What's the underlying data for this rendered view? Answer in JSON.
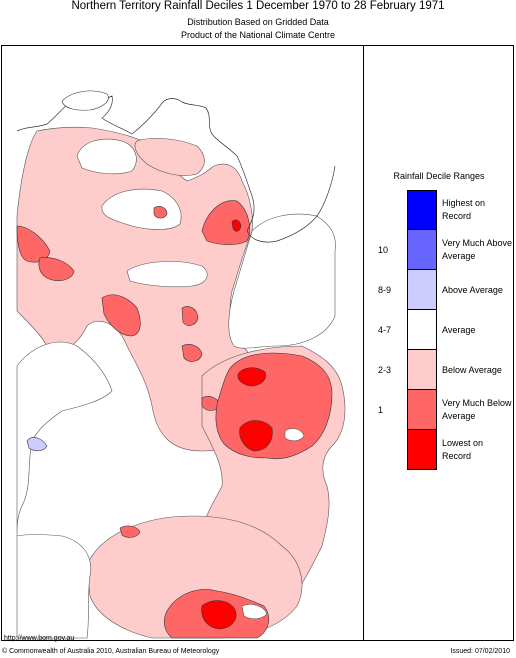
{
  "header": {
    "title": "Northern Territory Rainfall Deciles     1 December 1970 to 28 February 1971",
    "subtitle1": "Distribution Based on Gridded Data",
    "subtitle2": "Product of the National Climate Centre"
  },
  "legend": {
    "title": "Rainfall Decile Ranges",
    "rows": [
      {
        "range": "",
        "label": "Highest on Record",
        "color": "#0000ff"
      },
      {
        "range": "10",
        "label": "Very Much Above Average",
        "color": "#6666ff"
      },
      {
        "range": "8-9",
        "label": "Above Average",
        "color": "#ccccff"
      },
      {
        "range": "4-7",
        "label": "Average",
        "color": "#ffffff"
      },
      {
        "range": "2-3",
        "label": "Below Average",
        "color": "#ffcccc"
      },
      {
        "range": "1",
        "label": "Very Much Below Average",
        "color": "#ff6666"
      },
      {
        "range": "",
        "label": "Lowest on Record",
        "color": "#ff0000"
      }
    ]
  },
  "footer": {
    "url": "http://www.bom.gov.au",
    "copyright": "© Commonwealth of Australia 2010, Australian Bureau of Meteorology",
    "issued": "Issued: 07/02/2010"
  }
}
